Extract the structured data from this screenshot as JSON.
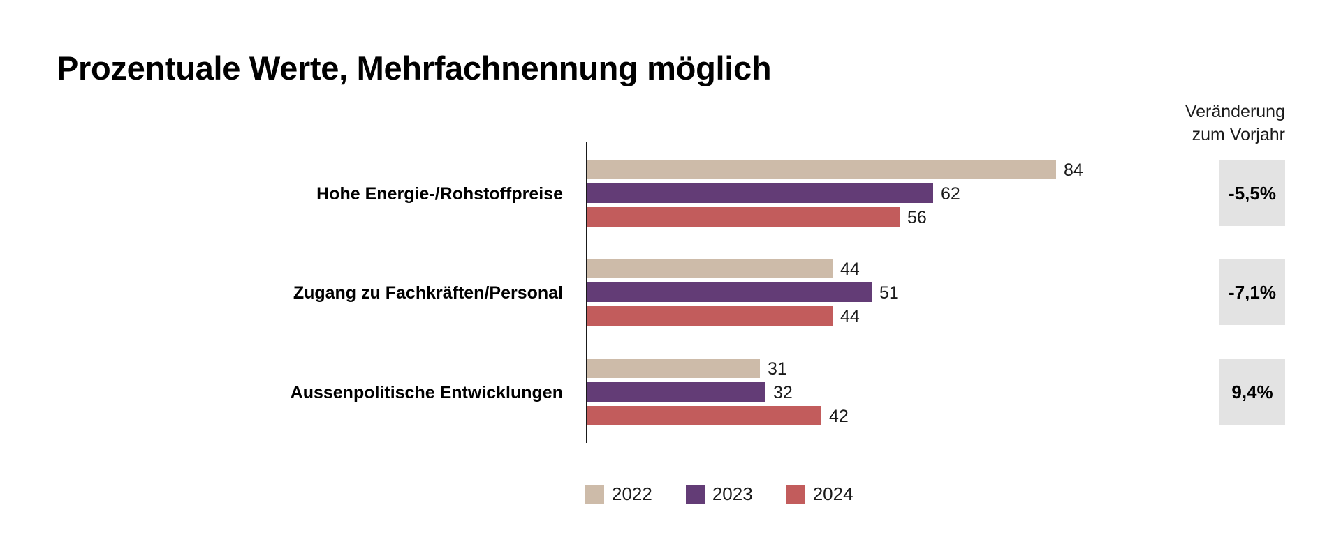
{
  "title": "Prozentuale Werte, Mehrfachnennung möglich",
  "change_header": {
    "line1": "Veränderung",
    "line2": "zum Vorjahr"
  },
  "changes": [
    "-5,5%",
    "-7,1%",
    "9,4%"
  ],
  "colors": {
    "2022": "#cdbba9",
    "2023": "#633c76",
    "2024": "#c25c5c",
    "axis": "#1a1a1a",
    "change_box": "#e3e3e3"
  },
  "chart_data": {
    "type": "bar",
    "orientation": "horizontal",
    "title": "Prozentuale Werte, Mehrfachnennung möglich",
    "categories": [
      "Hohe Energie-/Rohstoffpreise",
      "Zugang zu Fachkräften/Personal",
      "Aussenpolitische Entwicklungen"
    ],
    "series": [
      {
        "name": "2022",
        "values": [
          84,
          44,
          31
        ]
      },
      {
        "name": "2023",
        "values": [
          62,
          51,
          32
        ]
      },
      {
        "name": "2024",
        "values": [
          56,
          44,
          42
        ]
      }
    ],
    "xlim": [
      0,
      100
    ],
    "grid": false,
    "legend_position": "bottom"
  }
}
